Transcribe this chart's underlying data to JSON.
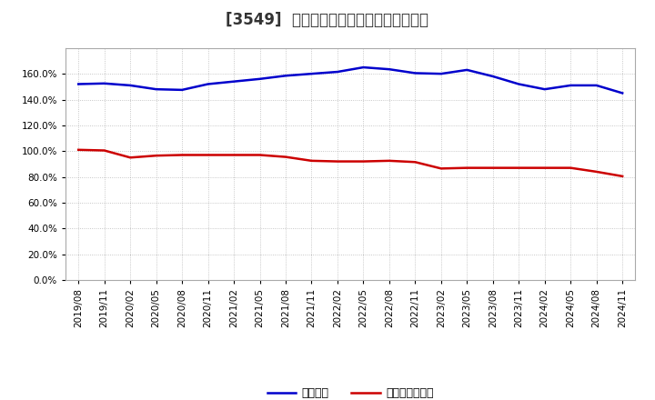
{
  "title": "[3549]  固定比率、固定長期適合率の推移",
  "x_labels": [
    "2019/08",
    "2019/11",
    "2020/02",
    "2020/05",
    "2020/08",
    "2020/11",
    "2021/02",
    "2021/05",
    "2021/08",
    "2021/11",
    "2022/02",
    "2022/05",
    "2022/08",
    "2022/11",
    "2023/02",
    "2023/05",
    "2023/08",
    "2023/11",
    "2024/02",
    "2024/05",
    "2024/08",
    "2024/11"
  ],
  "fixed_ratio": [
    152.0,
    152.5,
    151.0,
    148.0,
    147.5,
    152.0,
    154.0,
    156.0,
    158.5,
    160.0,
    161.5,
    165.0,
    163.5,
    160.5,
    160.0,
    163.0,
    158.0,
    152.0,
    148.0,
    151.0,
    151.0,
    145.0
  ],
  "fixed_lt_ratio": [
    101.0,
    100.5,
    95.0,
    96.5,
    97.0,
    97.0,
    97.0,
    97.0,
    95.5,
    92.5,
    92.0,
    92.0,
    92.5,
    91.5,
    86.5,
    87.0,
    87.0,
    87.0,
    87.0,
    87.0,
    84.0,
    80.5
  ],
  "line1_color": "#0000cc",
  "line2_color": "#cc0000",
  "line1_label": "固定比率",
  "line2_label": "固定長期適合率",
  "ylim": [
    0.0,
    180.0
  ],
  "yticks": [
    0.0,
    20.0,
    40.0,
    60.0,
    80.0,
    100.0,
    120.0,
    140.0,
    160.0
  ],
  "background_color": "#ffffff",
  "grid_color": "#999999",
  "title_fontsize": 12,
  "axis_fontsize": 7.5,
  "legend_fontsize": 9
}
